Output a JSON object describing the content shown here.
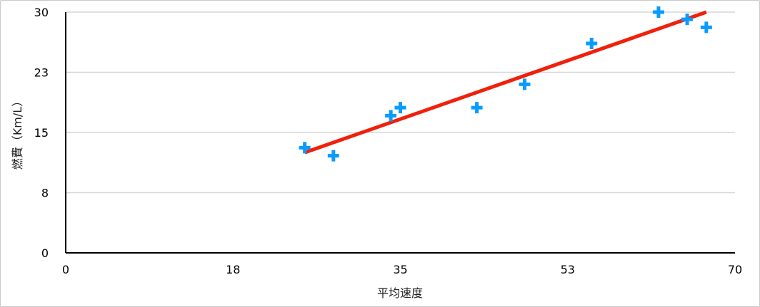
{
  "chart_data": {
    "type": "scatter",
    "xlabel": "平均速度",
    "ylabel": "燃費（Km/L）",
    "xlim": [
      0,
      70
    ],
    "ylim": [
      0,
      30
    ],
    "x_ticks": [
      0,
      17.5,
      35,
      52.5,
      70
    ],
    "x_tick_labels": [
      "0",
      "18",
      "35",
      "53",
      "70"
    ],
    "y_ticks": [
      0,
      7.5,
      15,
      22.5,
      30
    ],
    "y_tick_labels": [
      "0",
      "8",
      "15",
      "23",
      "30"
    ],
    "grid": {
      "horizontal": true,
      "vertical": false
    },
    "marker": "plus",
    "point_color": "#0a9bff",
    "trendline_color": "#f0200a",
    "points": [
      {
        "x": 25.0,
        "y": 13.1
      },
      {
        "x": 28.0,
        "y": 12.1
      },
      {
        "x": 34.0,
        "y": 17.1
      },
      {
        "x": 35.0,
        "y": 18.1
      },
      {
        "x": 43.0,
        "y": 18.1
      },
      {
        "x": 48.0,
        "y": 21.0
      },
      {
        "x": 55.0,
        "y": 26.1
      },
      {
        "x": 62.0,
        "y": 30.0
      },
      {
        "x": 65.0,
        "y": 29.1
      },
      {
        "x": 67.0,
        "y": 28.1
      }
    ],
    "trendline": {
      "type": "linear",
      "from": {
        "x": 25.0,
        "y": 12.5
      },
      "to": {
        "x": 67.0,
        "y": 30.0
      }
    }
  }
}
